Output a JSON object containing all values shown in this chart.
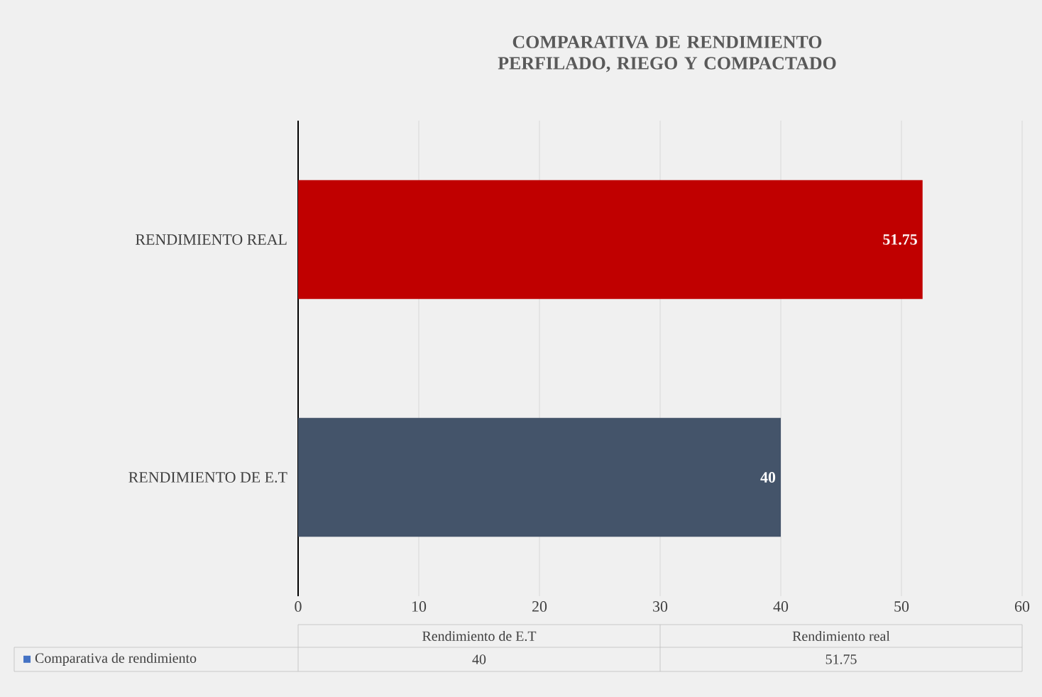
{
  "chart_data": {
    "type": "bar",
    "orientation": "horizontal",
    "title": "COMPARATIVA DE RENDIMIENTO PERFILADO, RIEGO Y COMPACTADO",
    "categories": [
      "RENDIMIENTO REAL",
      "RENDIMIENTO DE E.T"
    ],
    "values": [
      51.75,
      40
    ],
    "colors": [
      "#c00000",
      "#44546a"
    ],
    "xlim": [
      0,
      60
    ],
    "xticks": [
      0,
      10,
      20,
      30,
      40,
      50,
      60
    ],
    "grid": "x",
    "data_labels": true,
    "annotations": [
      "Rendimiento de E.T",
      "Rendimiento real",
      "Comparativa de rendimiento",
      "40",
      "51.75"
    ]
  }
}
